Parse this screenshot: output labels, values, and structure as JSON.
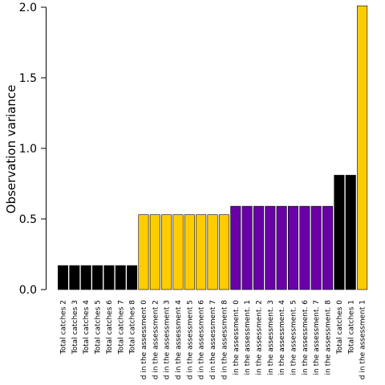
{
  "chart_data": {
    "type": "bar",
    "title": "",
    "xlabel": "",
    "ylabel": "Observation variance",
    "ylim": [
      0,
      2.0
    ],
    "yticks": [
      "0.0",
      "0.5",
      "1.0",
      "1.5",
      "2.0"
    ],
    "grid": false,
    "categories": [
      "Total catches 2",
      "Total catches 3",
      "Total catches 4",
      "Total catches 5",
      "Total catches 6",
      "Total catches 7",
      "Total catches 8",
      "d in the assessment 0",
      "d in the assessment 2",
      "d in the assessment 3",
      "d in the assessment 4",
      "d in the assessment 5",
      "d in the assessment 6",
      "d in the assessment 7",
      "d in the assessment 8",
      "in the assessment. 0",
      "in the assessment. 1",
      "in the assessment. 2",
      "in the assessment. 3",
      "in the assessment. 4",
      "in the assessment. 5",
      "in the assessment. 6",
      "in the assessment. 7",
      "in the assessment. 8",
      "Total catches 0",
      "Total catches 1",
      "d in the assessment 1"
    ],
    "values": [
      0.17,
      0.17,
      0.17,
      0.17,
      0.17,
      0.17,
      0.17,
      0.53,
      0.53,
      0.53,
      0.53,
      0.53,
      0.53,
      0.53,
      0.53,
      0.59,
      0.59,
      0.59,
      0.59,
      0.59,
      0.59,
      0.59,
      0.59,
      0.59,
      0.81,
      0.81,
      2.01
    ],
    "colors": [
      "#000000",
      "#000000",
      "#000000",
      "#000000",
      "#000000",
      "#000000",
      "#000000",
      "#ffcc00",
      "#ffcc00",
      "#ffcc00",
      "#ffcc00",
      "#ffcc00",
      "#ffcc00",
      "#ffcc00",
      "#ffcc00",
      "#6a00a8",
      "#6a00a8",
      "#6a00a8",
      "#6a00a8",
      "#6a00a8",
      "#6a00a8",
      "#6a00a8",
      "#6a00a8",
      "#6a00a8",
      "#000000",
      "#000000",
      "#ffcc00"
    ]
  }
}
